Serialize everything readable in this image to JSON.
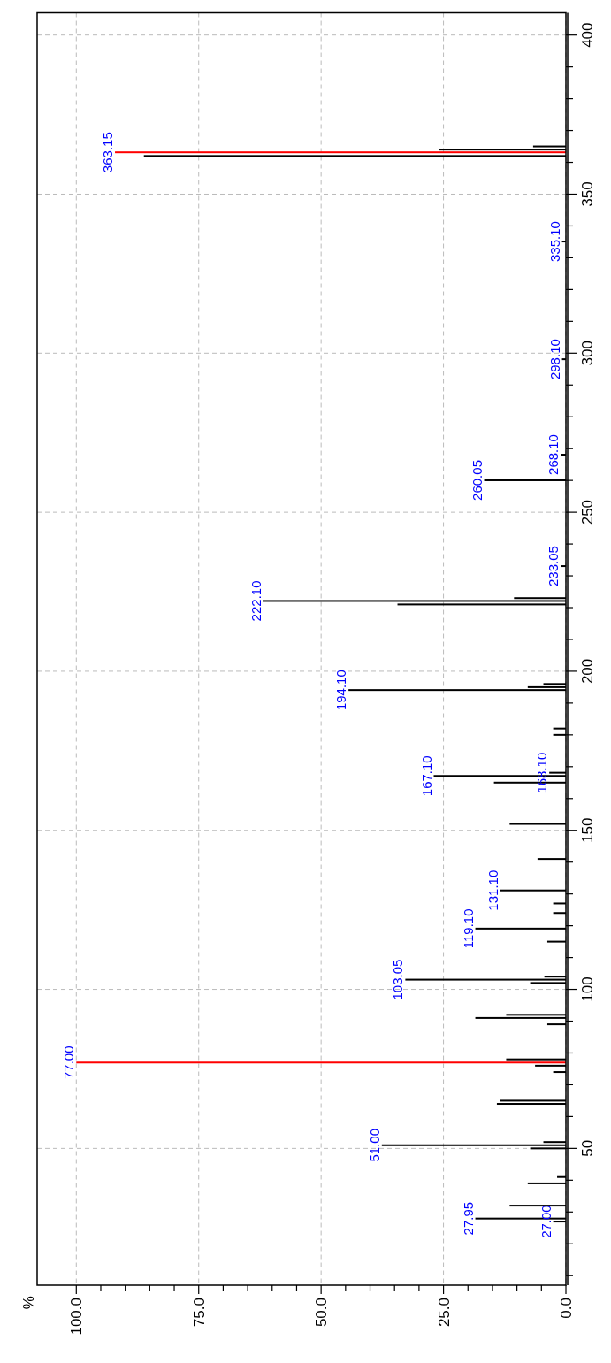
{
  "chart_data": {
    "type": "bar",
    "orientation": "horizontal",
    "x": [
      27,
      27.95,
      32,
      39,
      41,
      50,
      51,
      52,
      64,
      65,
      74,
      76,
      77,
      78,
      89,
      91,
      92,
      102,
      103.05,
      104,
      115,
      119.1,
      124,
      127,
      131.1,
      141,
      152,
      165,
      167.1,
      168.1,
      180,
      182,
      194.1,
      195,
      196,
      221,
      222.1,
      223,
      233.05,
      260.05,
      268.1,
      298.1,
      335.1,
      362,
      363.15,
      364,
      365
    ],
    "values": [
      2.6,
      18.5,
      11.5,
      7.8,
      1.8,
      7.3,
      37.6,
      4.6,
      14.1,
      13.4,
      2.6,
      6.3,
      100,
      12.2,
      3.8,
      18.5,
      12.2,
      7.3,
      32.8,
      4.4,
      3.8,
      18.5,
      2.6,
      2.6,
      13.4,
      5.8,
      11.5,
      14.7,
      27,
      3.4,
      2.6,
      2.6,
      44.4,
      7.8,
      4.6,
      34.4,
      61.8,
      10.6,
      1.0,
      16.7,
      1.0,
      0.8,
      0.8,
      86.2,
      92.1,
      25.9,
      6.7
    ],
    "colors": [
      "#000000",
      "#000000",
      "#000000",
      "#000000",
      "#000000",
      "#000000",
      "#000000",
      "#000000",
      "#000000",
      "#000000",
      "#000000",
      "#000000",
      "#ff0000",
      "#000000",
      "#000000",
      "#000000",
      "#000000",
      "#000000",
      "#000000",
      "#000000",
      "#000000",
      "#000000",
      "#000000",
      "#000000",
      "#000000",
      "#000000",
      "#000000",
      "#000000",
      "#000000",
      "#000000",
      "#000000",
      "#000000",
      "#000000",
      "#000000",
      "#000000",
      "#000000",
      "#000000",
      "#000000",
      "#000000",
      "#000000",
      "#000000",
      "#000000",
      "#000000",
      "#000000",
      "#ff0000",
      "#000000",
      "#000000"
    ],
    "ylim": [
      7,
      407
    ],
    "yticks": [
      {
        "value": 10,
        "label": null
      },
      {
        "value": 20,
        "label": null
      },
      {
        "value": 30,
        "label": null
      },
      {
        "value": 40,
        "label": null
      },
      50,
      {
        "value": 60,
        "label": null
      },
      {
        "value": 70,
        "label": null
      },
      {
        "value": 80,
        "label": null
      },
      {
        "value": 90,
        "label": null
      },
      100,
      {
        "value": 110,
        "label": null
      },
      {
        "value": 120,
        "label": null
      },
      {
        "value": 130,
        "label": null
      },
      {
        "value": 140,
        "label": null
      },
      150,
      {
        "value": 160,
        "label": null
      },
      {
        "value": 170,
        "label": null
      },
      {
        "value": 180,
        "label": null
      },
      {
        "value": 190,
        "label": null
      },
      200,
      {
        "value": 210,
        "label": null
      },
      {
        "value": 220,
        "label": null
      },
      {
        "value": 230,
        "label": null
      },
      {
        "value": 240,
        "label": null
      },
      250,
      {
        "value": 260,
        "label": null
      },
      {
        "value": 270,
        "label": null
      },
      {
        "value": 280,
        "label": null
      },
      {
        "value": 290,
        "label": null
      },
      300,
      {
        "value": 310,
        "label": null
      },
      {
        "value": 320,
        "label": null
      },
      {
        "value": 330,
        "label": null
      },
      {
        "value": 340,
        "label": null
      },
      350,
      {
        "value": 360,
        "label": null
      },
      {
        "value": 370,
        "label": null
      },
      {
        "value": 380,
        "label": null
      },
      {
        "value": 390,
        "label": null
      },
      400
    ],
    "xlim": [
      108,
      0
    ],
    "xticks": [
      {
        "value": 0,
        "label": "0.0"
      },
      {
        "value": 5,
        "label": null
      },
      {
        "value": 10,
        "label": null
      },
      {
        "value": 15,
        "label": null
      },
      {
        "value": 20,
        "label": null
      },
      {
        "value": 25,
        "label": "25.0"
      },
      {
        "value": 30,
        "label": null
      },
      {
        "value": 35,
        "label": null
      },
      {
        "value": 40,
        "label": null
      },
      {
        "value": 45,
        "label": null
      },
      {
        "value": 50,
        "label": "50.0"
      },
      {
        "value": 55,
        "label": null
      },
      {
        "value": 60,
        "label": null
      },
      {
        "value": 65,
        "label": null
      },
      {
        "value": 70,
        "label": null
      },
      {
        "value": 75,
        "label": "75.0"
      },
      {
        "value": 80,
        "label": null
      },
      {
        "value": 85,
        "label": null
      },
      {
        "value": 90,
        "label": null
      },
      {
        "value": 95,
        "label": null
      },
      {
        "value": 100,
        "label": "100.0"
      }
    ],
    "grid": true,
    "annotations": [
      "%",
      {
        "text": "27.00",
        "y": 27,
        "x": 2.6
      },
      {
        "text": "27.95",
        "y": 27.95,
        "x": 18.5
      },
      {
        "text": "51.00",
        "y": 51,
        "x": 37.6
      },
      {
        "text": "77.00",
        "y": 77,
        "x": 100
      },
      {
        "text": "103.05",
        "y": 103.05,
        "x": 32.8
      },
      {
        "text": "119.10",
        "y": 119.1,
        "x": 18.5
      },
      {
        "text": "131.10",
        "y": 131.1,
        "x": 13.4
      },
      {
        "text": "167.10",
        "y": 167.1,
        "x": 27
      },
      {
        "text": "168.10",
        "y": 168.1,
        "x": 3.4
      },
      {
        "text": "194.10",
        "y": 194.1,
        "x": 44.4
      },
      {
        "text": "222.10",
        "y": 222.1,
        "x": 61.8
      },
      {
        "text": "233.05",
        "y": 233.05,
        "x": 1.0
      },
      {
        "text": "260.05",
        "y": 260.05,
        "x": 16.7
      },
      {
        "text": "268.10",
        "y": 268.1,
        "x": 1.0
      },
      {
        "text": "298.10",
        "y": 298.1,
        "x": 0.8
      },
      {
        "text": "335.10",
        "y": 335.1,
        "x": 0.8
      },
      {
        "text": "363.15",
        "y": 363.15,
        "x": 92.1
      }
    ]
  }
}
